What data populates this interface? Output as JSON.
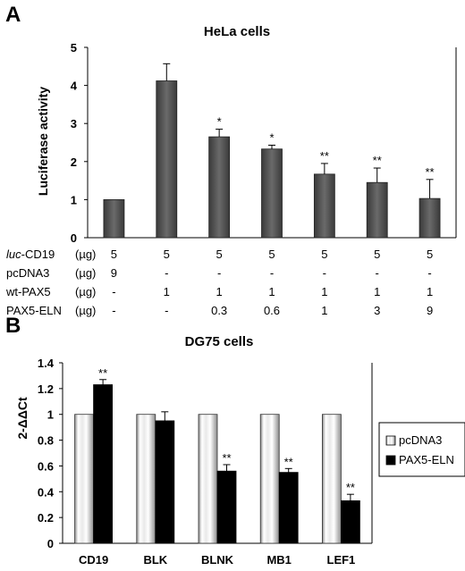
{
  "chart_data": [
    {
      "panel": "A",
      "type": "bar",
      "title": "HeLa cells",
      "ylabel": "Luciferase activity",
      "xlabel": "",
      "ylim": [
        0,
        5
      ],
      "yticks": [
        "0",
        "1",
        "2",
        "3",
        "4",
        "5"
      ],
      "grid": false,
      "colors": {
        "bar": "#4a4a4a",
        "bar_highlight": "#8a8a8a"
      },
      "series": [
        {
          "values": [
            1.0,
            4.12,
            2.65,
            2.33,
            1.67,
            1.45,
            1.03
          ],
          "errors": [
            0,
            0.45,
            0.2,
            0.1,
            0.28,
            0.38,
            0.5
          ],
          "significance": [
            "",
            "",
            "*",
            "*",
            "**",
            "**",
            "**"
          ]
        }
      ],
      "table": {
        "rows": [
          {
            "label": "luc-CD19",
            "label_italic_part": "luc",
            "label_rest": "-CD19",
            "unit": "(µg)",
            "values": [
              "5",
              "5",
              "5",
              "5",
              "5",
              "5",
              "5"
            ]
          },
          {
            "label": "pcDNA3",
            "label_italic_part": "",
            "label_rest": "pcDNA3",
            "unit": "(µg)",
            "values": [
              "9",
              "-",
              "-",
              "-",
              "-",
              "-",
              "-"
            ]
          },
          {
            "label": "wt-PAX5",
            "label_italic_part": "",
            "label_rest": "wt-PAX5",
            "unit": "(µg)",
            "values": [
              "-",
              "1",
              "1",
              "1",
              "1",
              "1",
              "1"
            ]
          },
          {
            "label": "PAX5-ELN",
            "label_italic_part": "",
            "label_rest": "PAX5-ELN",
            "unit": "(µg)",
            "values": [
              "-",
              "-",
              "0.3",
              "0.6",
              "1",
              "3",
              "9"
            ]
          }
        ]
      }
    },
    {
      "panel": "B",
      "type": "bar",
      "title": "DG75 cells",
      "ylabel": "2-ΔΔCt",
      "xlabel": "",
      "categories": [
        "CD19",
        "BLK",
        "BLNK",
        "MB1",
        "LEF1"
      ],
      "ylim": [
        0,
        1.4
      ],
      "yticks": [
        "0",
        "0.2",
        "0.4",
        "0.6",
        "0.8",
        "1",
        "1.2",
        "1.4"
      ],
      "grid": false,
      "legend_position": "right",
      "series": [
        {
          "name": "pcDNA3",
          "values": [
            1.0,
            1.0,
            1.0,
            1.0,
            1.0
          ],
          "errors": [
            0,
            0,
            0,
            0,
            0
          ],
          "significance": [
            "",
            "",
            "",
            "",
            ""
          ],
          "style": "cylinder-white"
        },
        {
          "name": "PAX5-ELN",
          "values": [
            1.23,
            0.95,
            0.56,
            0.55,
            0.33
          ],
          "errors": [
            0.04,
            0.07,
            0.05,
            0.03,
            0.05
          ],
          "significance": [
            "**",
            "",
            "**",
            "**",
            "**"
          ],
          "style": "black"
        }
      ]
    }
  ]
}
